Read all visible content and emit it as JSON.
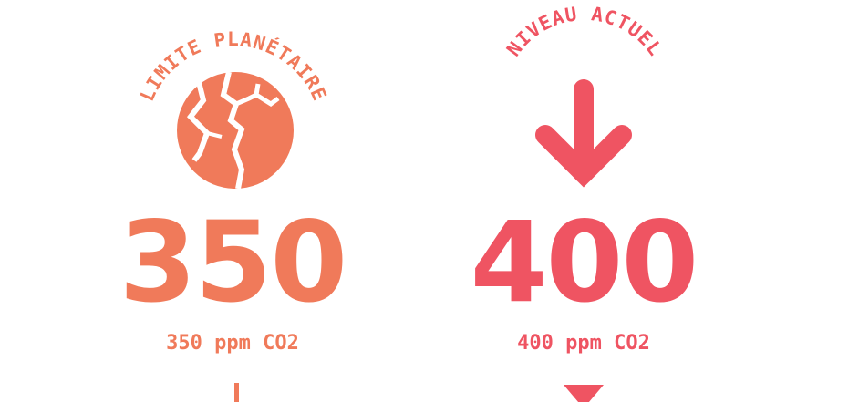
{
  "colors": {
    "orange": "#F07A5A",
    "red": "#EF5462"
  },
  "limit": {
    "arc_label": "LIMITE PLANÉTAIRE",
    "icon": "cracked-planet-icon",
    "value": "350",
    "unit_label": "350 ppm CO2"
  },
  "current": {
    "arc_label": "NIVEAU ACTUEL",
    "icon": "arrow-down-icon",
    "value": "400",
    "unit_label": "400 ppm CO2"
  }
}
